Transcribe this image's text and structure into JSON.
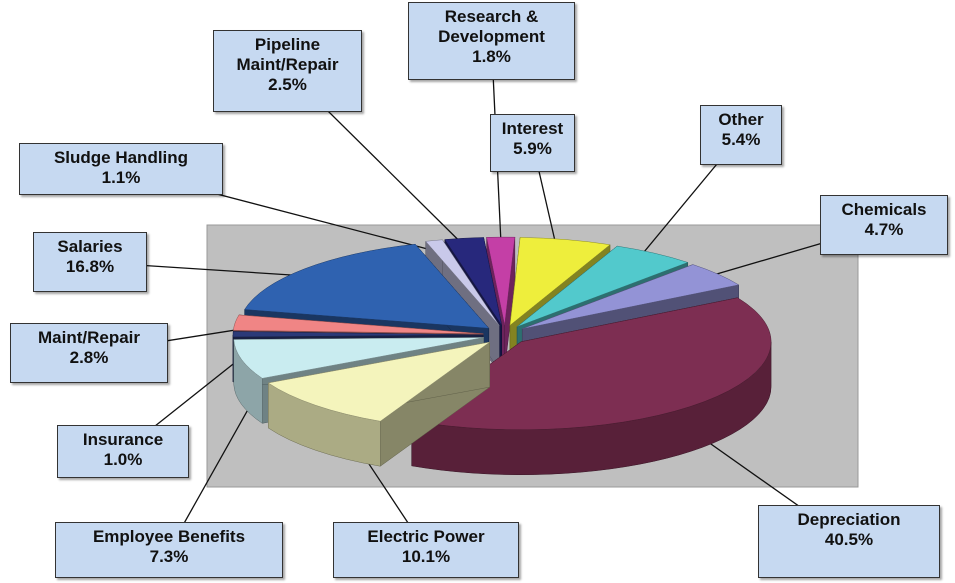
{
  "chart_data": {
    "type": "pie",
    "categories": [
      "Depreciation",
      "Electric Power",
      "Employee Benefits",
      "Insurance",
      "Maint/Repair",
      "Salaries",
      "Sludge Handling",
      "Pipeline Maint/Repair",
      "Research & Development",
      "Interest",
      "Other",
      "Chemicals"
    ],
    "values": [
      40.5,
      10.1,
      7.3,
      1.0,
      2.8,
      16.8,
      1.1,
      2.5,
      1.8,
      5.9,
      5.4,
      4.7
    ],
    "value_labels": [
      "40.5%",
      "10.1%",
      "7.3%",
      "1.0%",
      "2.8%",
      "16.8%",
      "1.1%",
      "2.5%",
      "1.8%",
      "5.9%",
      "5.4%",
      "4.7%"
    ],
    "colors": [
      "#7d2e52",
      "#f4f4bc",
      "#c9ecf0",
      "#2b3a78",
      "#f08585",
      "#2f62b0",
      "#c9c9ea",
      "#27287c",
      "#c43fa6",
      "#eeee3c",
      "#52c9cc",
      "#9393d6"
    ]
  }
}
